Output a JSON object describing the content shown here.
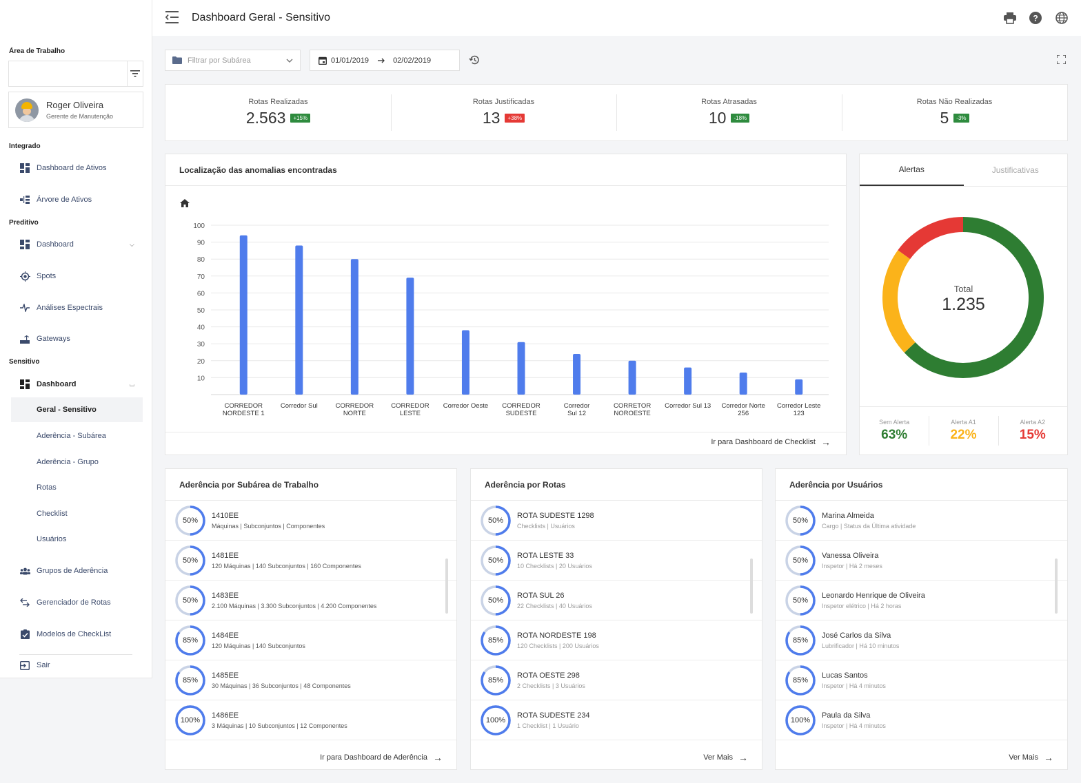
{
  "sidebar": {
    "workspace_label": "Área de Trabalho",
    "workspace_value": "",
    "user": {
      "name": "Roger Oliveira",
      "role": "Gerente de Manutenção"
    },
    "sections": {
      "integrado": "Integrado",
      "preditivo": "Preditivo",
      "sensitivo": "Sensitivo"
    },
    "integrado_items": [
      "Dashboard de Ativos",
      "Árvore de Ativos"
    ],
    "preditivo_items": [
      "Dashboard",
      "Spots",
      "Análises Espectrais",
      "Gateways"
    ],
    "sensitivo_dashboard": "Dashboard",
    "sensitivo_sub": [
      "Geral - Sensitivo",
      "Aderência - Subárea",
      "Aderência - Grupo",
      "Rotas",
      "Checklist",
      "Usuários"
    ],
    "other_items": [
      "Grupos de Aderência",
      "Gerenciador de Rotas",
      "Modelos de CheckList"
    ],
    "logout": "Sair"
  },
  "header": {
    "title": "Dashboard Geral - Sensitivo"
  },
  "filters": {
    "subarea_placeholder": "Filtrar por Subárea",
    "date_from": "01/01/2019",
    "date_to": "02/02/2019"
  },
  "kpis": [
    {
      "label": "Rotas Realizadas",
      "value": "2.563",
      "badge": "+15%",
      "badge_color": "#2e8b3e"
    },
    {
      "label": "Rotas Justificadas",
      "value": "13",
      "badge": "+38%",
      "badge_color": "#e53935"
    },
    {
      "label": "Rotas Atrasadas",
      "value": "10",
      "badge": "-18%",
      "badge_color": "#2e8b3e"
    },
    {
      "label": "Rotas Não Realizadas",
      "value": "5",
      "badge": "-3%",
      "badge_color": "#2e8b3e"
    }
  ],
  "anomalies": {
    "title": "Localização das anomalias encontradas",
    "link": "Ir para Dashboard de Checklist"
  },
  "chart_data": {
    "type": "bar",
    "title": "Localização das anomalias encontradas",
    "categories": [
      [
        "CORREDOR",
        "NORDESTE 1"
      ],
      [
        "Corredor Sul"
      ],
      [
        "CORREDOR",
        "NORTE"
      ],
      [
        "CORREDOR",
        "LESTE"
      ],
      [
        "Corredor Oeste"
      ],
      [
        "CORREDOR",
        "SUDESTE"
      ],
      [
        "Corredor",
        "Sul 12"
      ],
      [
        "CORRETOR",
        "NOROESTE"
      ],
      [
        "Corredor Sul 13"
      ],
      [
        "Corredor Norte",
        "256"
      ],
      [
        "Corredor Leste",
        "123"
      ]
    ],
    "values": [
      94,
      88,
      80,
      69,
      38,
      31,
      24,
      20,
      16,
      13,
      9
    ],
    "yticks": [
      10,
      20,
      30,
      40,
      50,
      60,
      70,
      80,
      90,
      100
    ],
    "ylim": [
      0,
      100
    ],
    "bar_color": "#4f7cec",
    "grid": true
  },
  "alerts": {
    "tabs": [
      "Alertas",
      "Justificativas"
    ],
    "total_label": "Total",
    "total_value": "1.235",
    "legend": [
      {
        "label": "Sem Alerta",
        "value": "63%",
        "color": "#2e7d32"
      },
      {
        "label": "Alerta A1",
        "value": "22%",
        "color": "#fbb31a"
      },
      {
        "label": "Alerta A2",
        "value": "15%",
        "color": "#e53935"
      }
    ],
    "donut": {
      "type": "pie",
      "values": [
        63,
        22,
        15
      ]
    }
  },
  "subarea_list": {
    "title": "Aderência por Subárea de Trabalho",
    "link": "Ir para Dashboard de Aderência",
    "items": [
      {
        "pct": "50%",
        "value": 50,
        "title": "1410EE",
        "sub": "Máquinas | Subconjuntos | Componentes"
      },
      {
        "pct": "50%",
        "value": 50,
        "title": "1481EE",
        "sub": "120 Máquinas | 140 Subconjuntos | 160 Componentes"
      },
      {
        "pct": "50%",
        "value": 50,
        "title": "1483EE",
        "sub": "2.100 Máquinas | 3.300 Subconjuntos | 4.200 Componentes"
      },
      {
        "pct": "85%",
        "value": 85,
        "title": "1484EE",
        "sub": "120 Máquinas | 140 Subconjuntos"
      },
      {
        "pct": "85%",
        "value": 85,
        "title": "1485EE",
        "sub": "30 Máquinas | 36 Subconjuntos | 48 Componentes"
      },
      {
        "pct": "100%",
        "value": 100,
        "title": "1486EE",
        "sub": "3 Máquinas | 10 Subconjuntos | 12 Componentes"
      }
    ]
  },
  "routes_list": {
    "title": "Aderência por Rotas",
    "link": "Ver Mais",
    "items": [
      {
        "pct": "50%",
        "value": 50,
        "title": "ROTA SUDESTE 1298",
        "sub": "Checklists | Usuários"
      },
      {
        "pct": "50%",
        "value": 50,
        "title": "ROTA LESTE 33",
        "sub": "10 Checklists | 20 Usuários"
      },
      {
        "pct": "50%",
        "value": 50,
        "title": "ROTA SUL 26",
        "sub": "22 Checklists | 40 Usuários"
      },
      {
        "pct": "85%",
        "value": 85,
        "title": "ROTA NORDESTE 198",
        "sub": "120 Checklists | 200 Usuários"
      },
      {
        "pct": "85%",
        "value": 85,
        "title": "ROTA OESTE 298",
        "sub": "2 Checklists | 3 Usuários"
      },
      {
        "pct": "100%",
        "value": 100,
        "title": "ROTA SUDESTE 234",
        "sub": "1 Checklist | 1 Usuário"
      }
    ]
  },
  "users_list": {
    "title": "Aderência por Usuários",
    "link": "Ver Mais",
    "items": [
      {
        "pct": "50%",
        "value": 50,
        "title": "Marina Almeida",
        "sub": "Cargo | Status da Última atividade"
      },
      {
        "pct": "50%",
        "value": 50,
        "title": "Vanessa Oliveira",
        "sub": "Inspetor | Há 2 meses"
      },
      {
        "pct": "50%",
        "value": 50,
        "title": "Leonardo Henrique de Oliveira",
        "sub": "Inspetor elétrico | Há 2 horas"
      },
      {
        "pct": "85%",
        "value": 85,
        "title": "José Carlos da Silva",
        "sub": "Lubrificador | Há 10 minutos"
      },
      {
        "pct": "85%",
        "value": 85,
        "title": "Lucas Santos",
        "sub": "Inspetor | Há 4 minutos"
      },
      {
        "pct": "100%",
        "value": 100,
        "title": "Paula da Silva",
        "sub": "Inspetor | Há 4 minutos"
      }
    ]
  },
  "colors": {
    "accent": "#4f7cec",
    "ring_track": "#c9d3e6",
    "nav_text": "#3b4a6b"
  },
  "icons": {
    "menu": "menu-collapse-icon",
    "print": "printer-icon",
    "help": "help-icon",
    "language": "globe-icon",
    "folder": "folder-icon",
    "calendar": "calendar-icon",
    "history": "history-icon",
    "fullscreen": "fullscreen-icon",
    "home": "home-icon"
  }
}
